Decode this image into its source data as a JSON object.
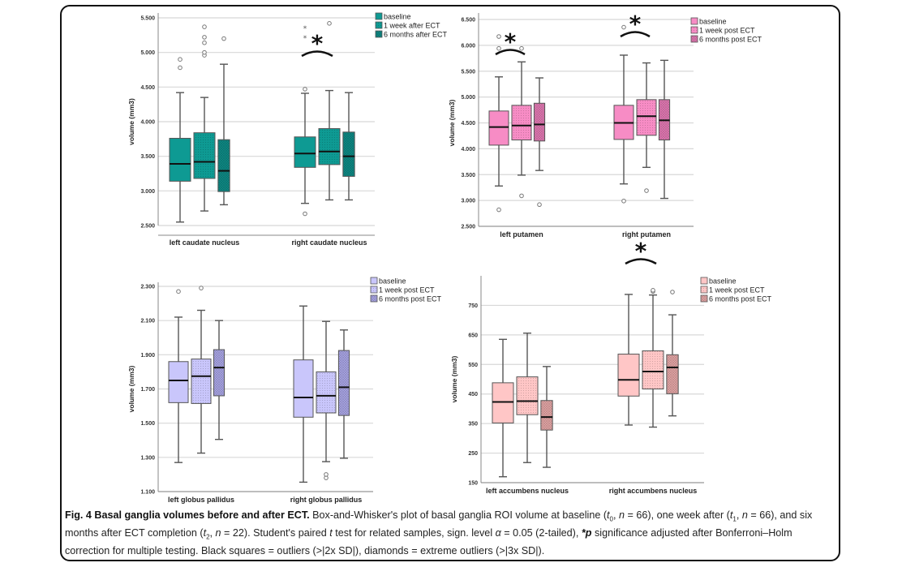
{
  "caption": {
    "title": "Fig. 4 Basal ganglia volumes before and after ECT.",
    "line1_a": " Box-and-Whisker's plot of basal ganglia ROI volume at baseline (",
    "t0": "t",
    "t0_sub": "0",
    "line1_b": ", ",
    "n": "n",
    "line1_c": " = 66), one week after (",
    "t1": "t",
    "t1_sub": "1",
    "line1_d": ", ",
    "line1_e": " = 66), and six months after ECT completion (",
    "t2": "t",
    "t2_sub": "2",
    "line1_f": ", ",
    "line1_g": " = 22). Student's paired ",
    "t_test": "t",
    "line1_h": " test for related samples, sign. level ",
    "alpha": "α",
    "line1_i": " = 0.05 (2-tailed), ",
    "star_p": "*p",
    "line1_j": " significance adjusted after Bonferroni–Holm correction for multiple testing. Black squares = outliers (>|2x SD|), diamonds = extreme outliers (>|3x SD|)."
  },
  "chart_data": [
    {
      "type": "box",
      "id": "caudate",
      "title": "",
      "xlabel": "",
      "ylabel": "volume (mm3)",
      "ylim": [
        2400,
        5550
      ],
      "yticks": [
        2500,
        3000,
        3500,
        4000,
        4500,
        5000,
        5500
      ],
      "ytick_labels": [
        "2.500",
        "3.000",
        "3.500",
        "4.000",
        "4.500",
        "5.000",
        "5.500"
      ],
      "grid": true,
      "legend_position": "top-right",
      "categories": [
        "left caudate nucleus",
        "right caudate nucleus"
      ],
      "series": [
        {
          "name": "baseline",
          "color": "#0e9a93",
          "pattern": "solid",
          "boxes": [
            {
              "min": 2550,
              "q1": 3140,
              "median": 3390,
              "q3": 3760,
              "max": 4420,
              "outliers": [
                4780,
                4900
              ],
              "extremes": []
            },
            {
              "min": 2820,
              "q1": 3340,
              "median": 3540,
              "q3": 3780,
              "max": 4410,
              "outliers": [
                2670,
                4470
              ],
              "extremes": [
                5220,
                5360
              ]
            }
          ]
        },
        {
          "name": "1 week after ECT",
          "color": "#0e9a93",
          "pattern": "dots",
          "boxes": [
            {
              "min": 2710,
              "q1": 3180,
              "median": 3420,
              "q3": 3840,
              "max": 4350,
              "outliers": [
                4960,
                5000,
                5140,
                5220,
                5370
              ],
              "extremes": []
            },
            {
              "min": 2870,
              "q1": 3380,
              "median": 3570,
              "q3": 3900,
              "max": 4450,
              "outliers": [
                5420
              ],
              "extremes": []
            }
          ]
        },
        {
          "name": "6 months after ECT",
          "color": "#0e8a85",
          "pattern": "cross",
          "boxes": [
            {
              "min": 2800,
              "q1": 2990,
              "median": 3290,
              "q3": 3740,
              "max": 4830,
              "outliers": [
                5200
              ],
              "extremes": []
            },
            {
              "min": 2870,
              "q1": 3210,
              "median": 3500,
              "q3": 3850,
              "max": 4420,
              "outliers": [],
              "extremes": []
            }
          ]
        }
      ],
      "significance": [
        {
          "category": "right caudate nucleus",
          "between": [
            "baseline",
            "1 week after ECT"
          ],
          "label": "*"
        }
      ]
    },
    {
      "type": "box",
      "id": "putamen",
      "title": "",
      "xlabel": "",
      "ylabel": "volume (mm3)",
      "ylim": [
        2500,
        6500
      ],
      "yticks": [
        2500,
        3000,
        3500,
        4000,
        4500,
        5000,
        5500,
        6000,
        6500
      ],
      "ytick_labels": [
        "2.500",
        "3.000",
        "3.500",
        "4.000",
        "4.500",
        "5.000",
        "5.500",
        "6.000",
        "6.500"
      ],
      "grid": true,
      "legend_position": "top-right",
      "categories": [
        "left putamen",
        "right putamen"
      ],
      "series": [
        {
          "name": "baseline",
          "color": "#f78cc5",
          "pattern": "solid",
          "boxes": [
            {
              "min": 3280,
              "q1": 4070,
              "median": 4420,
              "q3": 4730,
              "max": 5390,
              "outliers": [
                2820,
                5940,
                6170
              ],
              "extremes": []
            },
            {
              "min": 3320,
              "q1": 4180,
              "median": 4500,
              "q3": 4840,
              "max": 5810,
              "outliers": [
                2990,
                6350
              ],
              "extremes": []
            }
          ]
        },
        {
          "name": "1 week post ECT",
          "color": "#f78cc5",
          "pattern": "dots",
          "boxes": [
            {
              "min": 3490,
              "q1": 4170,
              "median": 4450,
              "q3": 4840,
              "max": 5680,
              "outliers": [
                3090,
                5940
              ],
              "extremes": []
            },
            {
              "min": 3640,
              "q1": 4260,
              "median": 4630,
              "q3": 4950,
              "max": 5660,
              "outliers": [
                3190
              ],
              "extremes": []
            }
          ]
        },
        {
          "name": "6 months post ECT",
          "color": "#e279b3",
          "pattern": "cross",
          "boxes": [
            {
              "min": 3580,
              "q1": 4150,
              "median": 4470,
              "q3": 4880,
              "max": 5370,
              "outliers": [
                2920
              ],
              "extremes": []
            },
            {
              "min": 3040,
              "q1": 4170,
              "median": 4550,
              "q3": 4950,
              "max": 5710,
              "outliers": [],
              "extremes": []
            }
          ]
        }
      ],
      "significance": [
        {
          "category": "left putamen",
          "between": [
            "baseline",
            "1 week post ECT"
          ],
          "label": "*"
        },
        {
          "category": "right putamen",
          "between": [
            "baseline",
            "1 week post ECT"
          ],
          "label": "*"
        }
      ]
    },
    {
      "type": "box",
      "id": "globus_pallidus",
      "title": "",
      "xlabel": "",
      "ylabel": "volume (mm3)",
      "ylim": [
        1100,
        2300
      ],
      "yticks": [
        1100,
        1300,
        1500,
        1700,
        1900,
        2100,
        2300
      ],
      "ytick_labels": [
        "1.100",
        "1.300",
        "1.500",
        "1.700",
        "1.900",
        "2.100",
        "2.300"
      ],
      "grid": true,
      "legend_position": "top-right",
      "categories": [
        "left globus pallidus",
        "right globus pallidus"
      ],
      "series": [
        {
          "name": "baseline",
          "color": "#c9c6fb",
          "pattern": "solid",
          "boxes": [
            {
              "min": 1270,
              "q1": 1620,
              "median": 1750,
              "q3": 1860,
              "max": 2120,
              "outliers": [
                2270
              ],
              "extremes": []
            },
            {
              "min": 1155,
              "q1": 1535,
              "median": 1650,
              "q3": 1870,
              "max": 2185,
              "outliers": [],
              "extremes": []
            }
          ]
        },
        {
          "name": "1 week post ECT",
          "color": "#c9c6fb",
          "pattern": "dots",
          "boxes": [
            {
              "min": 1325,
              "q1": 1615,
              "median": 1775,
              "q3": 1875,
              "max": 2160,
              "outliers": [
                2290
              ],
              "extremes": []
            },
            {
              "min": 1275,
              "q1": 1560,
              "median": 1660,
              "q3": 1800,
              "max": 2095,
              "outliers": [
                1180,
                1200
              ],
              "extremes": []
            }
          ]
        },
        {
          "name": "6 months post ECT",
          "color": "#aaa6e6",
          "pattern": "cross",
          "boxes": [
            {
              "min": 1405,
              "q1": 1660,
              "median": 1825,
              "q3": 1930,
              "max": 2100,
              "outliers": [],
              "extremes": []
            },
            {
              "min": 1295,
              "q1": 1545,
              "median": 1710,
              "q3": 1925,
              "max": 2045,
              "outliers": [],
              "extremes": []
            }
          ]
        }
      ],
      "significance": []
    },
    {
      "type": "box",
      "id": "accumbens",
      "title": "",
      "xlabel": "",
      "ylabel": "volume (mm3)",
      "ylim": [
        150,
        850
      ],
      "yticks": [
        150,
        250,
        350,
        450,
        550,
        650,
        750
      ],
      "ytick_labels": [
        "150",
        "250",
        "350",
        "450",
        "550",
        "650",
        "750"
      ],
      "grid": true,
      "legend_position": "top-right",
      "categories": [
        "left accumbens nucleus",
        "right accumbens nucleus"
      ],
      "series": [
        {
          "name": "baseline",
          "color": "#ffc6c6",
          "pattern": "solid",
          "boxes": [
            {
              "min": 170,
              "q1": 352,
              "median": 423,
              "q3": 488,
              "max": 635,
              "outliers": [],
              "extremes": []
            },
            {
              "min": 345,
              "q1": 443,
              "median": 498,
              "q3": 585,
              "max": 787,
              "outliers": [],
              "extremes": []
            }
          ]
        },
        {
          "name": "1 week post ECT",
          "color": "#ffc6c6",
          "pattern": "dots",
          "boxes": [
            {
              "min": 218,
              "q1": 380,
              "median": 426,
              "q3": 508,
              "max": 656,
              "outliers": [],
              "extremes": []
            },
            {
              "min": 338,
              "q1": 467,
              "median": 526,
              "q3": 596,
              "max": 785,
              "outliers": [
                797,
                801
              ],
              "extremes": []
            }
          ]
        },
        {
          "name": "6 months post ECT",
          "color": "#e4a6a6",
          "pattern": "cross",
          "boxes": [
            {
              "min": 202,
              "q1": 328,
              "median": 372,
              "q3": 428,
              "max": 543,
              "outliers": [],
              "extremes": []
            },
            {
              "min": 376,
              "q1": 451,
              "median": 540,
              "q3": 583,
              "max": 718,
              "outliers": [
                795
              ],
              "extremes": []
            }
          ]
        }
      ],
      "significance": [
        {
          "category": "right accumbens nucleus",
          "between": [
            "baseline",
            "1 week post ECT"
          ],
          "label": "*"
        }
      ]
    }
  ]
}
